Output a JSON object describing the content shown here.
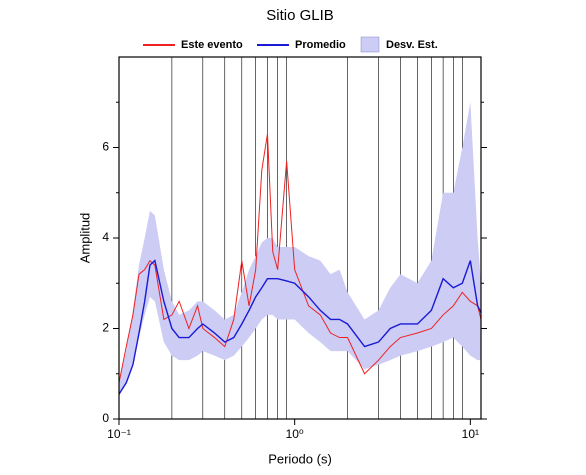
{
  "chart_data": {
    "type": "line",
    "title": "Sitio GLIB",
    "xlabel": "Periodo (s)",
    "ylabel": "Amplitud",
    "xscale": "log",
    "grid": true,
    "x": [
      0.1,
      0.11,
      0.12,
      0.13,
      0.14,
      0.15,
      0.16,
      0.18,
      0.2,
      0.22,
      0.25,
      0.28,
      0.3,
      0.35,
      0.4,
      0.45,
      0.5,
      0.55,
      0.6,
      0.65,
      0.7,
      0.75,
      0.8,
      0.9,
      1.0,
      1.2,
      1.4,
      1.6,
      1.8,
      2.0,
      2.5,
      3.0,
      3.5,
      4,
      5,
      6,
      7,
      8,
      9,
      10,
      11,
      11.5
    ],
    "xlim": [
      0.1,
      11.5
    ],
    "xticks": [
      {
        "value": 0.1,
        "label": "10⁻¹"
      },
      {
        "value": 1,
        "label": "10⁰"
      },
      {
        "value": 10,
        "label": "10¹"
      }
    ],
    "ylim": [
      0,
      8
    ],
    "yticks": [
      0,
      2,
      4,
      6
    ],
    "series": [
      {
        "name": "Desv. Est.",
        "color": "#ccccf5",
        "kind": "band",
        "lower": [
          0.5,
          0.8,
          1.2,
          1.8,
          2.3,
          2.7,
          2.6,
          1.7,
          1.4,
          1.3,
          1.3,
          1.4,
          1.5,
          1.4,
          1.3,
          1.4,
          1.6,
          1.8,
          2.0,
          2.2,
          2.3,
          2.3,
          2.2,
          2.2,
          2.2,
          1.9,
          1.7,
          1.5,
          1.5,
          1.5,
          1.1,
          1.2,
          1.3,
          1.4,
          1.5,
          1.6,
          1.7,
          1.8,
          1.6,
          1.4,
          1.3,
          1.3
        ],
        "upper": [
          0.8,
          1.5,
          2.4,
          3.4,
          4.0,
          4.6,
          4.5,
          3.3,
          2.6,
          2.3,
          2.4,
          2.6,
          2.6,
          2.4,
          2.2,
          2.3,
          2.8,
          3.3,
          3.6,
          3.9,
          4.0,
          4.0,
          3.8,
          3.8,
          3.8,
          3.6,
          3.5,
          3.2,
          3.3,
          2.8,
          2.2,
          2.4,
          2.9,
          3.2,
          3.0,
          3.5,
          5.0,
          5.0,
          6.0,
          7.0,
          4.0,
          3.0
        ]
      },
      {
        "name": "Este evento",
        "color": "#ee2222",
        "kind": "line",
        "values": [
          0.8,
          1.6,
          2.3,
          3.2,
          3.3,
          3.5,
          3.4,
          2.2,
          2.3,
          2.6,
          2.0,
          2.5,
          2.0,
          1.8,
          1.6,
          2.2,
          3.5,
          2.5,
          3.3,
          5.5,
          6.3,
          3.7,
          3.3,
          5.7,
          3.3,
          2.5,
          2.3,
          1.9,
          1.8,
          1.8,
          1.0,
          1.3,
          1.6,
          1.8,
          1.9,
          2.0,
          2.3,
          2.5,
          2.8,
          2.6,
          2.5,
          2.2
        ]
      },
      {
        "name": "Promedio",
        "color": "#1a1ad6",
        "kind": "line",
        "values": [
          0.55,
          0.8,
          1.2,
          1.9,
          2.6,
          3.4,
          3.5,
          2.6,
          2.0,
          1.8,
          1.8,
          2.0,
          2.1,
          1.9,
          1.7,
          1.8,
          2.1,
          2.4,
          2.7,
          2.9,
          3.1,
          3.1,
          3.1,
          3.05,
          3.0,
          2.7,
          2.4,
          2.2,
          2.2,
          2.1,
          1.6,
          1.7,
          2.0,
          2.1,
          2.1,
          2.4,
          3.1,
          2.9,
          3.0,
          3.5,
          2.5,
          2.35
        ]
      }
    ]
  }
}
